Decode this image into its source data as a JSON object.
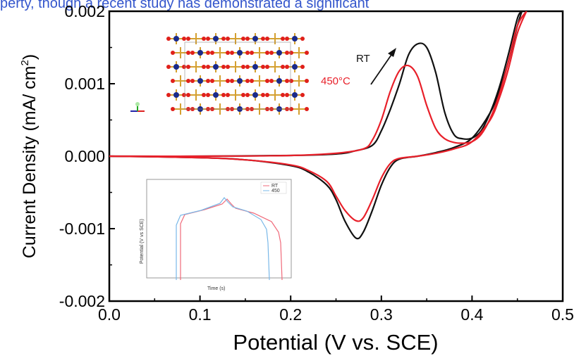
{
  "caption_fragment": "perty, though a recent study has demonstrated a significant",
  "colors": {
    "rt": "#111111",
    "t450": "#e8202a",
    "inset_rt": "#f06a7a",
    "inset_450": "#7ab8e8",
    "link": "#3355cc"
  },
  "chart_data": {
    "type": "line",
    "title": "",
    "xlabel": "Potential (V vs. SCE)",
    "ylabel": "Current Density (mA/ cm²)",
    "ylabel_base": "Current Density (mA/ cm",
    "ylabel_sup": "2",
    "ylabel_end": ")",
    "xlim": [
      0.0,
      0.5
    ],
    "ylim": [
      -0.002,
      0.002
    ],
    "xticks": [
      0.0,
      0.1,
      0.2,
      0.3,
      0.4,
      0.5
    ],
    "xtick_labels": [
      "0.0",
      "0.1",
      "0.2",
      "0.3",
      "0.4",
      "0.5"
    ],
    "yticks": [
      -0.002,
      -0.001,
      0.0,
      0.001,
      0.002
    ],
    "ytick_labels": [
      "-0.002",
      "-0.001",
      "0.000",
      "0.001",
      "0.002"
    ],
    "grid": false,
    "legend": "none",
    "annotations": [
      {
        "text": "RT",
        "color": "#111111"
      },
      {
        "text": "450°C",
        "color": "#e8202a"
      }
    ],
    "series": [
      {
        "name": "RT",
        "color": "#111111",
        "forward": [
          [
            0.0,
            0.0
          ],
          [
            0.1,
            0.0
          ],
          [
            0.2,
            1e-05
          ],
          [
            0.25,
            3e-05
          ],
          [
            0.27,
            7e-05
          ],
          [
            0.29,
            0.00015
          ],
          [
            0.3,
            0.00035
          ],
          [
            0.31,
            0.00065
          ],
          [
            0.32,
            0.001
          ],
          [
            0.33,
            0.0014
          ],
          [
            0.34,
            0.00155
          ],
          [
            0.35,
            0.0015
          ],
          [
            0.36,
            0.00115
          ],
          [
            0.37,
            0.0006
          ],
          [
            0.38,
            0.0003
          ],
          [
            0.39,
            0.00024
          ],
          [
            0.4,
            0.00025
          ],
          [
            0.41,
            0.00035
          ],
          [
            0.42,
            0.0006
          ],
          [
            0.43,
            0.00095
          ],
          [
            0.44,
            0.0014
          ],
          [
            0.45,
            0.0019
          ],
          [
            0.455,
            0.002
          ]
        ],
        "reverse": [
          [
            0.455,
            0.002
          ],
          [
            0.45,
            0.0018
          ],
          [
            0.44,
            0.0013
          ],
          [
            0.43,
            0.0009
          ],
          [
            0.42,
            0.0006
          ],
          [
            0.4,
            0.00025
          ],
          [
            0.38,
            0.00012
          ],
          [
            0.36,
            5e-05
          ],
          [
            0.34,
            0.0
          ],
          [
            0.32,
            -4e-05
          ],
          [
            0.31,
            -0.00015
          ],
          [
            0.3,
            -0.0004
          ],
          [
            0.29,
            -0.00075
          ],
          [
            0.28,
            -0.00105
          ],
          [
            0.272,
            -0.00113
          ],
          [
            0.26,
            -0.0009
          ],
          [
            0.25,
            -0.0006
          ],
          [
            0.24,
            -0.0004
          ],
          [
            0.22,
            -0.00022
          ],
          [
            0.2,
            -0.00013
          ],
          [
            0.15,
            -5e-05
          ],
          [
            0.1,
            -2e-05
          ],
          [
            0.0,
            0.0
          ]
        ]
      },
      {
        "name": "450°C",
        "color": "#e8202a",
        "forward": [
          [
            0.0,
            0.0
          ],
          [
            0.1,
            0.0
          ],
          [
            0.2,
            1e-05
          ],
          [
            0.25,
            4e-05
          ],
          [
            0.28,
            0.0001
          ],
          [
            0.29,
            0.00022
          ],
          [
            0.3,
            0.0005
          ],
          [
            0.31,
            0.0009
          ],
          [
            0.32,
            0.00118
          ],
          [
            0.33,
            0.00125
          ],
          [
            0.34,
            0.0011
          ],
          [
            0.35,
            0.0007
          ],
          [
            0.36,
            0.00038
          ],
          [
            0.37,
            0.00024
          ],
          [
            0.38,
            0.00019
          ],
          [
            0.39,
            0.00018
          ],
          [
            0.4,
            0.0002
          ],
          [
            0.41,
            0.0003
          ],
          [
            0.42,
            0.00052
          ],
          [
            0.43,
            0.00085
          ],
          [
            0.44,
            0.0013
          ],
          [
            0.45,
            0.0018
          ],
          [
            0.46,
            0.002
          ]
        ],
        "reverse": [
          [
            0.46,
            0.002
          ],
          [
            0.45,
            0.0017
          ],
          [
            0.44,
            0.0012
          ],
          [
            0.43,
            0.0008
          ],
          [
            0.42,
            0.0005
          ],
          [
            0.4,
            0.0002
          ],
          [
            0.38,
            0.0001
          ],
          [
            0.36,
            4e-05
          ],
          [
            0.34,
            0.0
          ],
          [
            0.32,
            -3e-05
          ],
          [
            0.31,
            -0.0001
          ],
          [
            0.3,
            -0.0003
          ],
          [
            0.29,
            -0.0006
          ],
          [
            0.28,
            -0.00085
          ],
          [
            0.272,
            -0.00089
          ],
          [
            0.26,
            -0.00075
          ],
          [
            0.25,
            -0.00055
          ],
          [
            0.24,
            -0.00035
          ],
          [
            0.22,
            -0.0002
          ],
          [
            0.2,
            -0.00012
          ],
          [
            0.15,
            -5e-05
          ],
          [
            0.1,
            -2e-05
          ],
          [
            0.0,
            0.0
          ]
        ]
      }
    ],
    "inset": {
      "type": "line",
      "xlabel": "Time (s)",
      "ylabel": "Potential (V vs SCE)",
      "xlim": [
        0,
        140
      ],
      "ylim": [
        0.0,
        0.8
      ],
      "legend": [
        "RT",
        "450"
      ]
    }
  }
}
